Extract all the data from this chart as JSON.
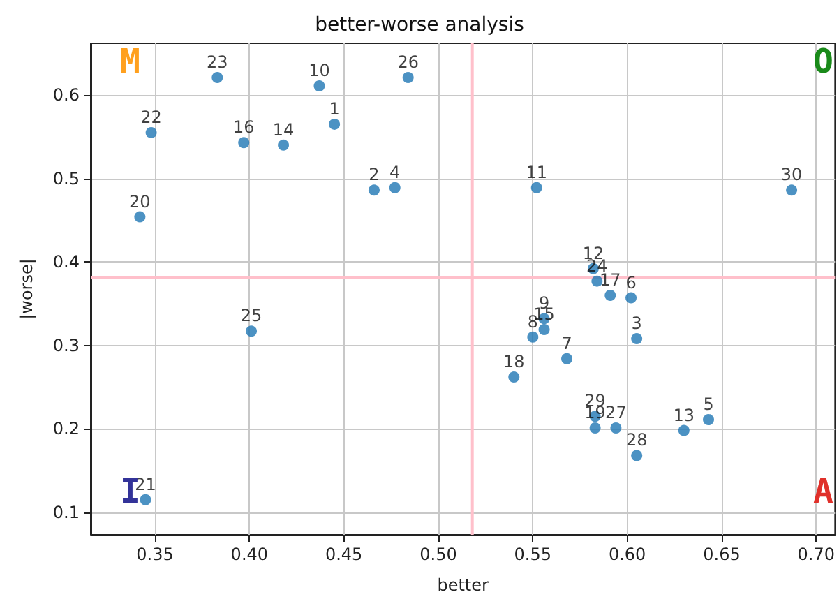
{
  "chart_data": {
    "type": "scatter",
    "title": "better-worse analysis",
    "xlabel": "better",
    "ylabel": "|worse|",
    "annotations": [
      "M",
      "O",
      "I",
      "A",
      {
        "text": "1",
        "x": 0.445,
        "y": 0.565
      },
      {
        "text": "2",
        "x": 0.466,
        "y": 0.486
      },
      {
        "text": "3",
        "x": 0.605,
        "y": 0.308
      },
      {
        "text": "4",
        "x": 0.477,
        "y": 0.489
      },
      {
        "text": "5",
        "x": 0.643,
        "y": 0.211
      },
      {
        "text": "6",
        "x": 0.602,
        "y": 0.357
      },
      {
        "text": "7",
        "x": 0.568,
        "y": 0.284
      },
      {
        "text": "8",
        "x": 0.55,
        "y": 0.31
      },
      {
        "text": "9",
        "x": 0.556,
        "y": 0.332
      },
      {
        "text": "10",
        "x": 0.437,
        "y": 0.611
      },
      {
        "text": "11",
        "x": 0.552,
        "y": 0.489
      },
      {
        "text": "12",
        "x": 0.582,
        "y": 0.392
      },
      {
        "text": "13",
        "x": 0.63,
        "y": 0.198
      },
      {
        "text": "14",
        "x": 0.418,
        "y": 0.54
      },
      {
        "text": "15",
        "x": 0.556,
        "y": 0.319
      },
      {
        "text": "16",
        "x": 0.397,
        "y": 0.543
      },
      {
        "text": "17",
        "x": 0.591,
        "y": 0.36
      },
      {
        "text": "18",
        "x": 0.54,
        "y": 0.262
      },
      {
        "text": "19",
        "x": 0.583,
        "y": 0.201
      },
      {
        "text": "20",
        "x": 0.342,
        "y": 0.454
      },
      {
        "text": "21",
        "x": 0.345,
        "y": 0.115
      },
      {
        "text": "22",
        "x": 0.348,
        "y": 0.555
      },
      {
        "text": "23",
        "x": 0.383,
        "y": 0.621
      },
      {
        "text": "24",
        "x": 0.584,
        "y": 0.377
      },
      {
        "text": "25",
        "x": 0.401,
        "y": 0.317
      },
      {
        "text": "26",
        "x": 0.484,
        "y": 0.621
      },
      {
        "text": "27",
        "x": 0.594,
        "y": 0.201
      },
      {
        "text": "28",
        "x": 0.605,
        "y": 0.168
      },
      {
        "text": "29",
        "x": 0.583,
        "y": 0.215
      },
      {
        "text": "30",
        "x": 0.687,
        "y": 0.486
      }
    ],
    "x": [
      0.445,
      0.466,
      0.605,
      0.477,
      0.643,
      0.602,
      0.568,
      0.55,
      0.556,
      0.437,
      0.552,
      0.582,
      0.63,
      0.418,
      0.556,
      0.397,
      0.591,
      0.54,
      0.583,
      0.342,
      0.345,
      0.348,
      0.383,
      0.584,
      0.401,
      0.484,
      0.594,
      0.605,
      0.583,
      0.687
    ],
    "series": [
      {
        "color": "#1f77b4",
        "values": [
          0.565,
          0.486,
          0.308,
          0.489,
          0.211,
          0.357,
          0.284,
          0.31,
          0.332,
          0.611,
          0.489,
          0.392,
          0.198,
          0.54,
          0.319,
          0.543,
          0.36,
          0.262,
          0.201,
          0.454,
          0.115,
          0.555,
          0.621,
          0.377,
          0.317,
          0.621,
          0.201,
          0.168,
          0.215,
          0.486
        ]
      }
    ],
    "xlim": [
      0.316,
      0.71
    ],
    "ylim": [
      0.073,
      0.662
    ],
    "xticks": [
      0.35,
      {
        "value": 0.4,
        "label": "0.40"
      },
      0.45,
      {
        "value": 0.5,
        "label": "0.50"
      },
      0.55,
      {
        "value": 0.6,
        "label": "0.60"
      },
      0.65,
      {
        "value": 0.7,
        "label": "0.70"
      }
    ],
    "yticks": [
      0.1,
      0.2,
      0.3,
      0.4,
      0.5,
      0.6
    ],
    "ref_lines": [
      {
        "axis": "x",
        "value": 0.518,
        "color": "#ffc0cb"
      },
      {
        "axis": "y",
        "value": 0.381,
        "color": "#ffc0cb"
      }
    ],
    "grid": true,
    "marker": "circle"
  }
}
